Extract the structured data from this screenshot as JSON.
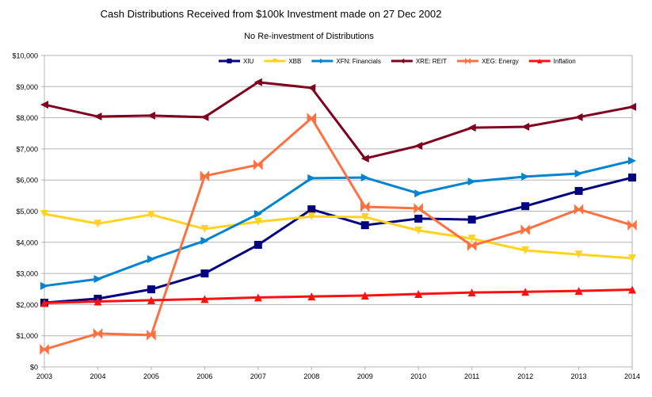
{
  "chart_data": {
    "type": "line",
    "title": "Cash Distributions Received from $100k Investment made on 27 Dec 2002",
    "subtitle": "No Re-investment of Distributions",
    "xlabel": "",
    "ylabel": "",
    "categories": [
      "2003",
      "2004",
      "2005",
      "2006",
      "2007",
      "2008",
      "2009",
      "2010",
      "2011",
      "2012",
      "2013",
      "2014"
    ],
    "ylim": [
      0,
      10000
    ],
    "yticks": [
      0,
      1000,
      2000,
      3000,
      4000,
      5000,
      6000,
      7000,
      8000,
      9000,
      10000
    ],
    "ytick_labels": [
      "$0",
      "$1,000",
      "$2,000",
      "$3,000",
      "$4,000",
      "$5,000",
      "$6,000",
      "$7,000",
      "$8,000",
      "$9,000",
      "$10,000"
    ],
    "grid": true,
    "legend_position": "top-right",
    "series": [
      {
        "name": "XIU",
        "color": "#000080",
        "marker": "square",
        "values": [
          2060,
          2190,
          2490,
          3000,
          3920,
          5060,
          4550,
          4760,
          4730,
          5160,
          5650,
          6080
        ]
      },
      {
        "name": "XBB",
        "color": "#ffd320",
        "marker": "triangle-down",
        "values": [
          4910,
          4600,
          4890,
          4430,
          4660,
          4830,
          4810,
          4380,
          4120,
          3740,
          3610,
          3490
        ]
      },
      {
        "name": "XFN: Financials",
        "color": "#0084d1",
        "marker": "triangle-right",
        "values": [
          2600,
          2820,
          3460,
          4050,
          4910,
          6060,
          6080,
          5570,
          5950,
          6110,
          6210,
          6620
        ]
      },
      {
        "name": "XRE: REIT",
        "color": "#7e0021",
        "marker": "triangle-left",
        "values": [
          8420,
          8040,
          8070,
          8020,
          9140,
          8960,
          6690,
          7100,
          7680,
          7710,
          8020,
          8350
        ]
      },
      {
        "name": "XEG: Energy",
        "color": "#ff7040",
        "marker": "bowtie",
        "values": [
          560,
          1070,
          1020,
          6130,
          6490,
          7990,
          5140,
          5090,
          3890,
          4400,
          5060,
          4550
        ]
      },
      {
        "name": "Inflation",
        "color": "#ff1010",
        "marker": "triangle-up",
        "values": [
          2050,
          2100,
          2140,
          2180,
          2230,
          2260,
          2290,
          2340,
          2390,
          2410,
          2440,
          2480
        ]
      }
    ]
  }
}
